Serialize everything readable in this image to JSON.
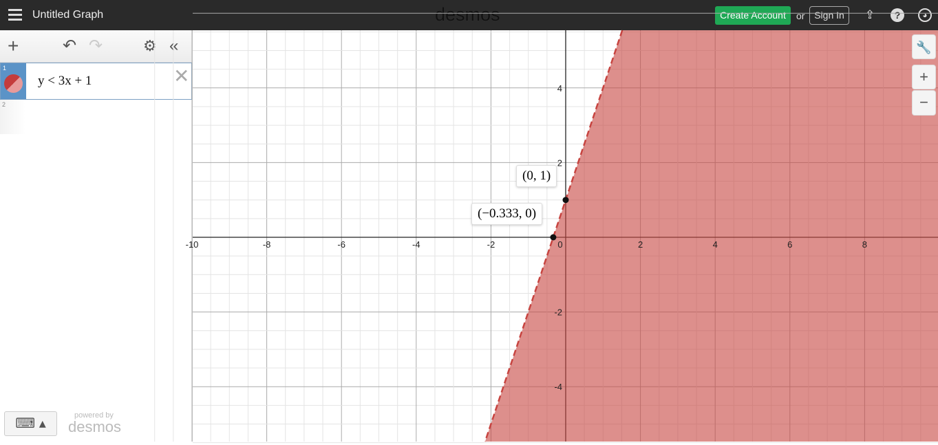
{
  "header": {
    "title": "Untitled Graph",
    "logo": "desmos",
    "create_account": "Create Account",
    "or": "or",
    "sign_in": "Sign In",
    "icons": [
      "menu-icon",
      "share-icon",
      "help-icon",
      "globe-icon"
    ]
  },
  "toolbar": {
    "icons": [
      "add-icon",
      "undo-icon",
      "redo-icon",
      "gear-icon",
      "collapse-icon"
    ]
  },
  "expressions": [
    {
      "index": "1",
      "latex": "y < 3x + 1",
      "color": "#c74440"
    },
    {
      "index": "2",
      "latex": ""
    }
  ],
  "footer": {
    "powered_by": "powered by",
    "logo": "desmos"
  },
  "graph": {
    "x_ticks": [
      "-10",
      "-8",
      "-6",
      "-4",
      "-2",
      "0",
      "2",
      "4",
      "6",
      "8"
    ],
    "y_ticks": [
      "4",
      "2",
      "-2",
      "-4"
    ],
    "points": [
      {
        "label": "(0, 1)",
        "x": 0,
        "y": 1
      },
      {
        "label": "(−0.333, 0)",
        "x": -0.333,
        "y": 0
      }
    ],
    "inequality": {
      "slope": 3,
      "intercept": 1,
      "type": "less-than",
      "line_style": "dashed",
      "color": "#c74440"
    }
  }
}
